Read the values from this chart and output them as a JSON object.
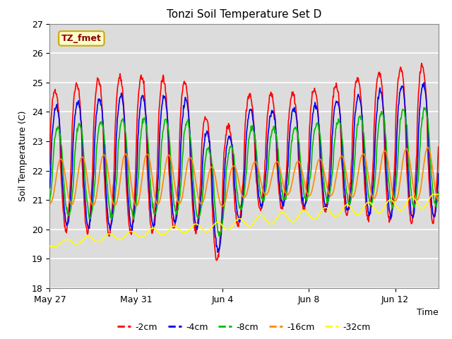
{
  "title": "Tonzi Soil Temperature Set D",
  "xlabel": "Time",
  "ylabel": "Soil Temperature (C)",
  "ylim": [
    18.0,
    27.0
  ],
  "yticks": [
    18.0,
    19.0,
    20.0,
    21.0,
    22.0,
    23.0,
    24.0,
    25.0,
    26.0,
    27.0
  ],
  "xtick_labels": [
    "May 27",
    "May 31",
    "Jun 4",
    "Jun 8",
    "Jun 12"
  ],
  "xtick_positions": [
    0,
    4,
    8,
    12,
    16
  ],
  "n_days": 18,
  "annotation_text": "TZ_fmet",
  "series_colors": [
    "#ff0000",
    "#0000ee",
    "#00bb00",
    "#ff8800",
    "#ffff00"
  ],
  "series_labels": [
    "-2cm",
    "-4cm",
    "-8cm",
    "-16cm",
    "-32cm"
  ],
  "fig_bg_color": "#ffffff",
  "plot_bg_color": "#dcdcdc",
  "grid_color": "#ffffff",
  "linewidth": 1.2,
  "title_fontsize": 11,
  "axis_fontsize": 9,
  "legend_fontsize": 9
}
